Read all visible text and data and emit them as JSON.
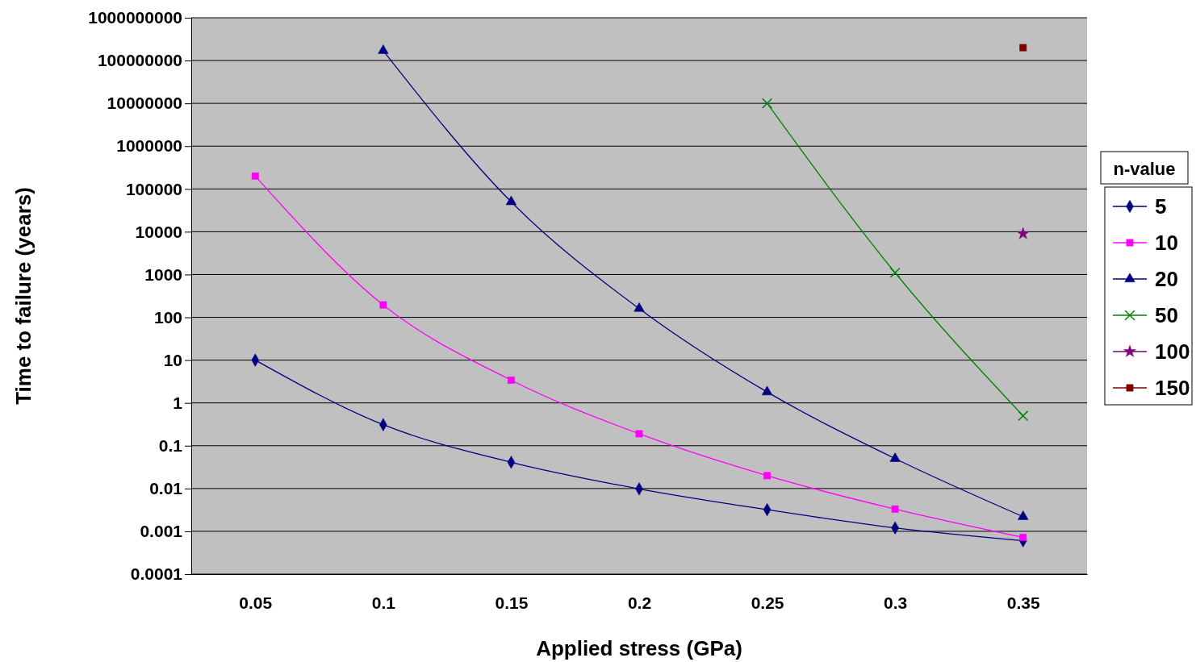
{
  "chart_data": {
    "type": "line",
    "xlabel": "Applied stress (GPa)",
    "ylabel": "Time to failure (years)",
    "legend_title": "n-value",
    "legend": "right",
    "grid": "y",
    "log": "y",
    "categories": [
      "0.05",
      "0.1",
      "0.15",
      "0.2",
      "0.25",
      "0.3",
      "0.35"
    ],
    "ylim": [
      0.0001,
      1000000000
    ],
    "yticks": [
      0.0001,
      0.001,
      0.01,
      0.1,
      1,
      10,
      100,
      1000,
      10000,
      100000,
      1000000,
      10000000,
      100000000,
      1000000000
    ],
    "series": [
      {
        "name": "5",
        "color": "#000080",
        "marker": "diamond",
        "values": [
          10,
          0.31,
          0.041,
          0.0098,
          0.0032,
          0.0012,
          0.0006
        ]
      },
      {
        "name": "10",
        "color": "#ff00ff",
        "marker": "square",
        "values": [
          200000,
          195,
          3.4,
          0.19,
          0.02,
          0.0033,
          0.00072
        ]
      },
      {
        "name": "20",
        "color": "#000080",
        "marker": "triangle",
        "values": [
          null,
          170000000,
          50000,
          160,
          1.8,
          0.05,
          0.0022
        ]
      },
      {
        "name": "50",
        "color": "#008000",
        "marker": "cross",
        "values": [
          null,
          null,
          null,
          null,
          10000000,
          1100,
          0.5
        ]
      },
      {
        "name": "100",
        "color": "#800080",
        "marker": "star",
        "values": [
          null,
          null,
          null,
          null,
          null,
          null,
          9000
        ]
      },
      {
        "name": "150",
        "color": "#800000",
        "marker": "square",
        "values": [
          null,
          null,
          null,
          null,
          null,
          null,
          200000000
        ]
      }
    ]
  }
}
